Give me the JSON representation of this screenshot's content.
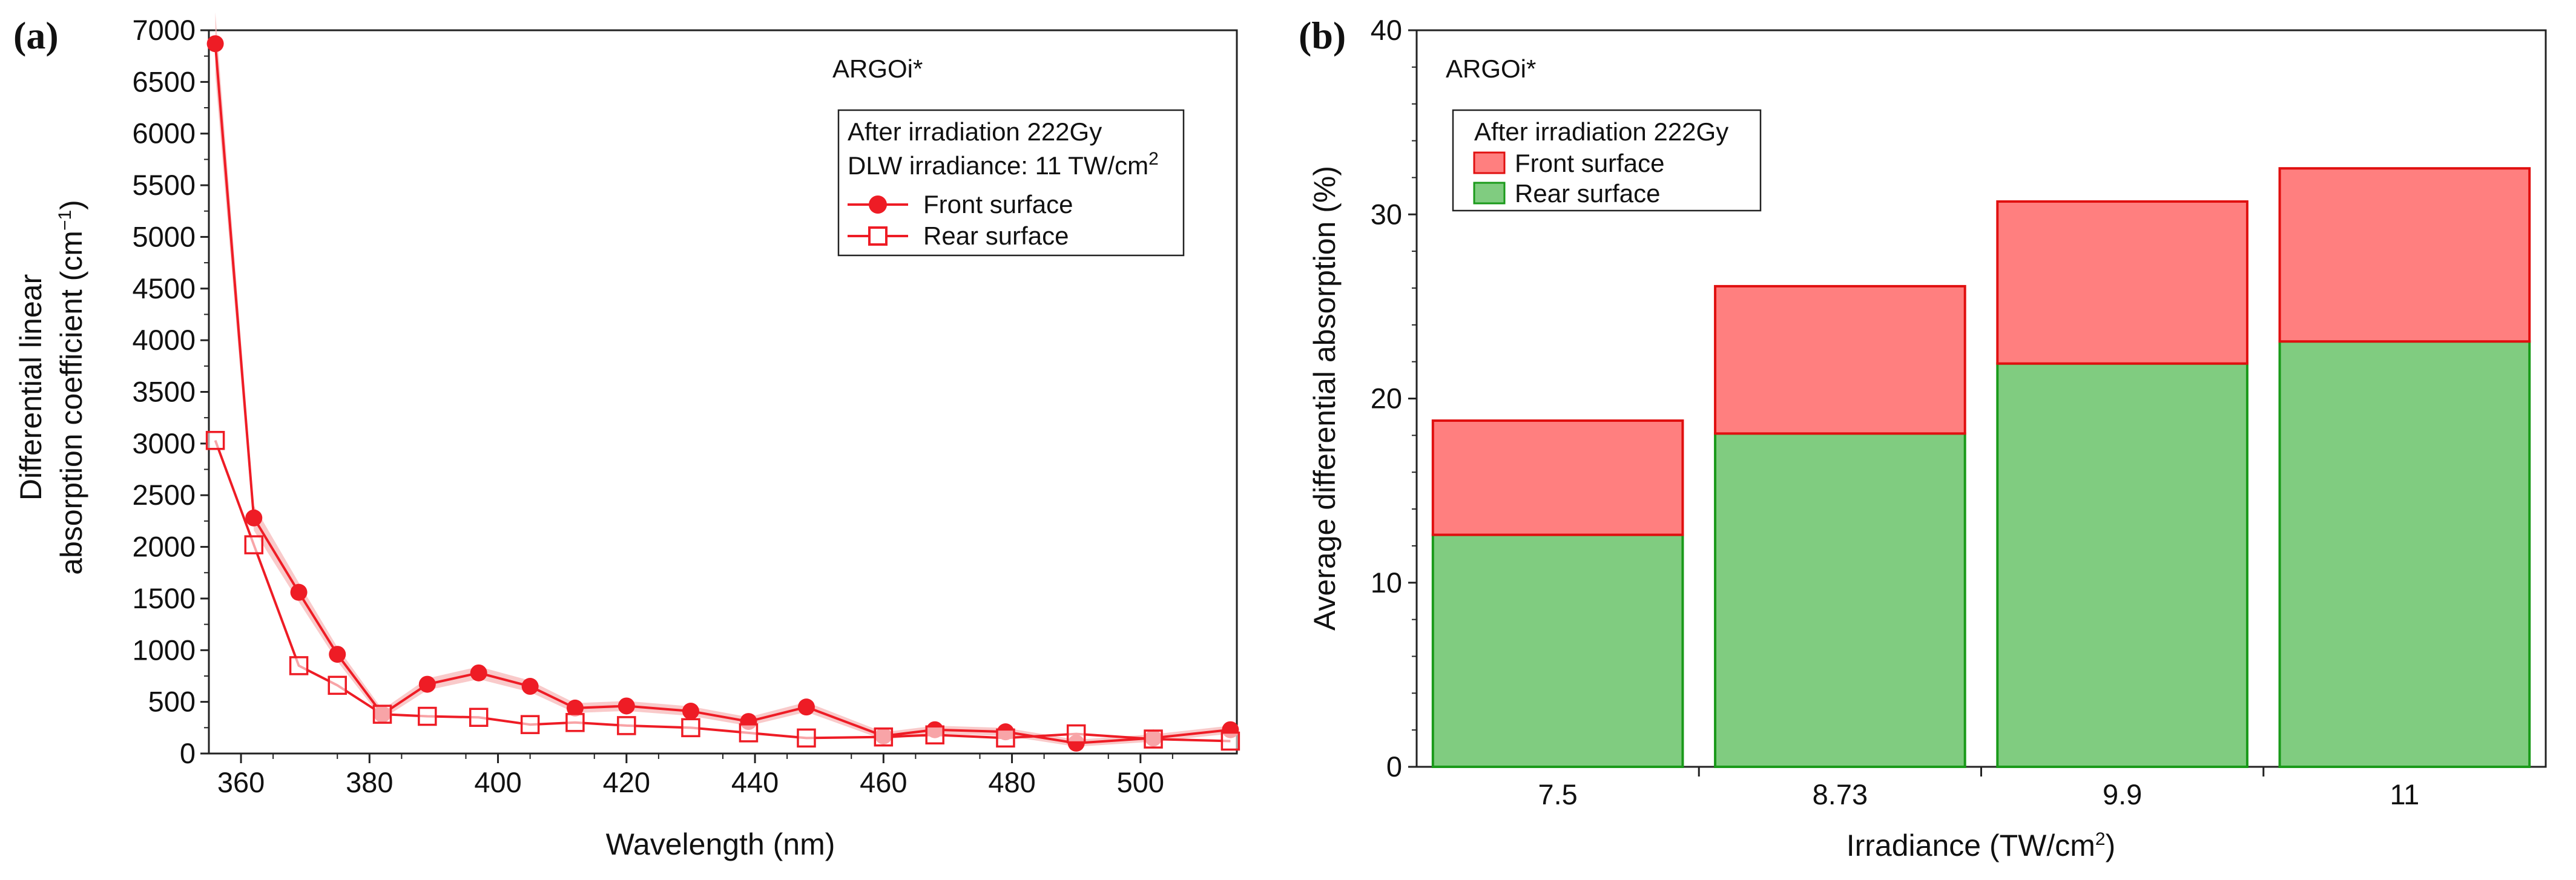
{
  "chart_data": [
    {
      "type": "line",
      "panel_label": "(a)",
      "annotation": "ARGOi*",
      "xlabel": "Wavelength (nm)",
      "ylabel_line1": "Differential linear",
      "ylabel_line2_main": "absorption coefficient (cm",
      "ylabel_sup": "−1",
      "ylabel_close": ")",
      "xlim": [
        355,
        515
      ],
      "ylim": [
        0,
        7000
      ],
      "xticks": [
        360,
        380,
        400,
        420,
        440,
        460,
        480,
        500
      ],
      "yticks": [
        0,
        500,
        1000,
        1500,
        2000,
        2500,
        3000,
        3500,
        4000,
        4500,
        5000,
        5500,
        6000,
        6500,
        7000
      ],
      "legend": {
        "line1": "After irradiation 222Gy",
        "line2_main": "DLW irradiance: 11 TW/cm",
        "line2_sup": "2"
      },
      "colors": {
        "series": "#ee1c25",
        "band": "#f6b4b4"
      },
      "x": [
        356,
        362,
        369,
        375,
        382,
        389,
        397,
        405,
        412,
        420,
        430,
        439,
        448,
        460,
        468,
        479,
        490,
        502,
        514
      ],
      "series": [
        {
          "name": "Front surface",
          "marker": "filled-circle",
          "values": [
            6870,
            2280,
            1560,
            960,
            380,
            670,
            780,
            650,
            440,
            460,
            410,
            310,
            450,
            170,
            230,
            210,
            100,
            150,
            230
          ]
        },
        {
          "name": "Rear surface",
          "marker": "open-square",
          "values": [
            3030,
            2020,
            850,
            660,
            380,
            360,
            350,
            280,
            300,
            270,
            250,
            200,
            150,
            160,
            180,
            150,
            190,
            140,
            120
          ]
        }
      ]
    },
    {
      "type": "bar",
      "stacked": true,
      "panel_label": "(b)",
      "annotation": "ARGOi*",
      "xlabel_main": "Irradiance (TW/cm",
      "xlabel_sup": "2",
      "xlabel_close": ")",
      "ylabel": "Average differential absorption (%)",
      "ylim": [
        0,
        40
      ],
      "yticks": [
        0,
        10,
        20,
        30,
        40
      ],
      "legend_title": "After irradiation 222Gy",
      "categories": [
        "7.5",
        "8.73",
        "9.9",
        "11"
      ],
      "series": [
        {
          "name": "Rear surface",
          "color": "#80cc80",
          "edge": "#1a9a1a",
          "values": [
            12.6,
            18.1,
            21.9,
            23.1
          ]
        },
        {
          "name": "Front surface",
          "color": "#ff7f7f",
          "edge": "#e01010",
          "values": [
            6.2,
            8.0,
            8.8,
            9.4
          ]
        }
      ],
      "legend_order": [
        "Front surface",
        "Rear surface"
      ]
    }
  ]
}
